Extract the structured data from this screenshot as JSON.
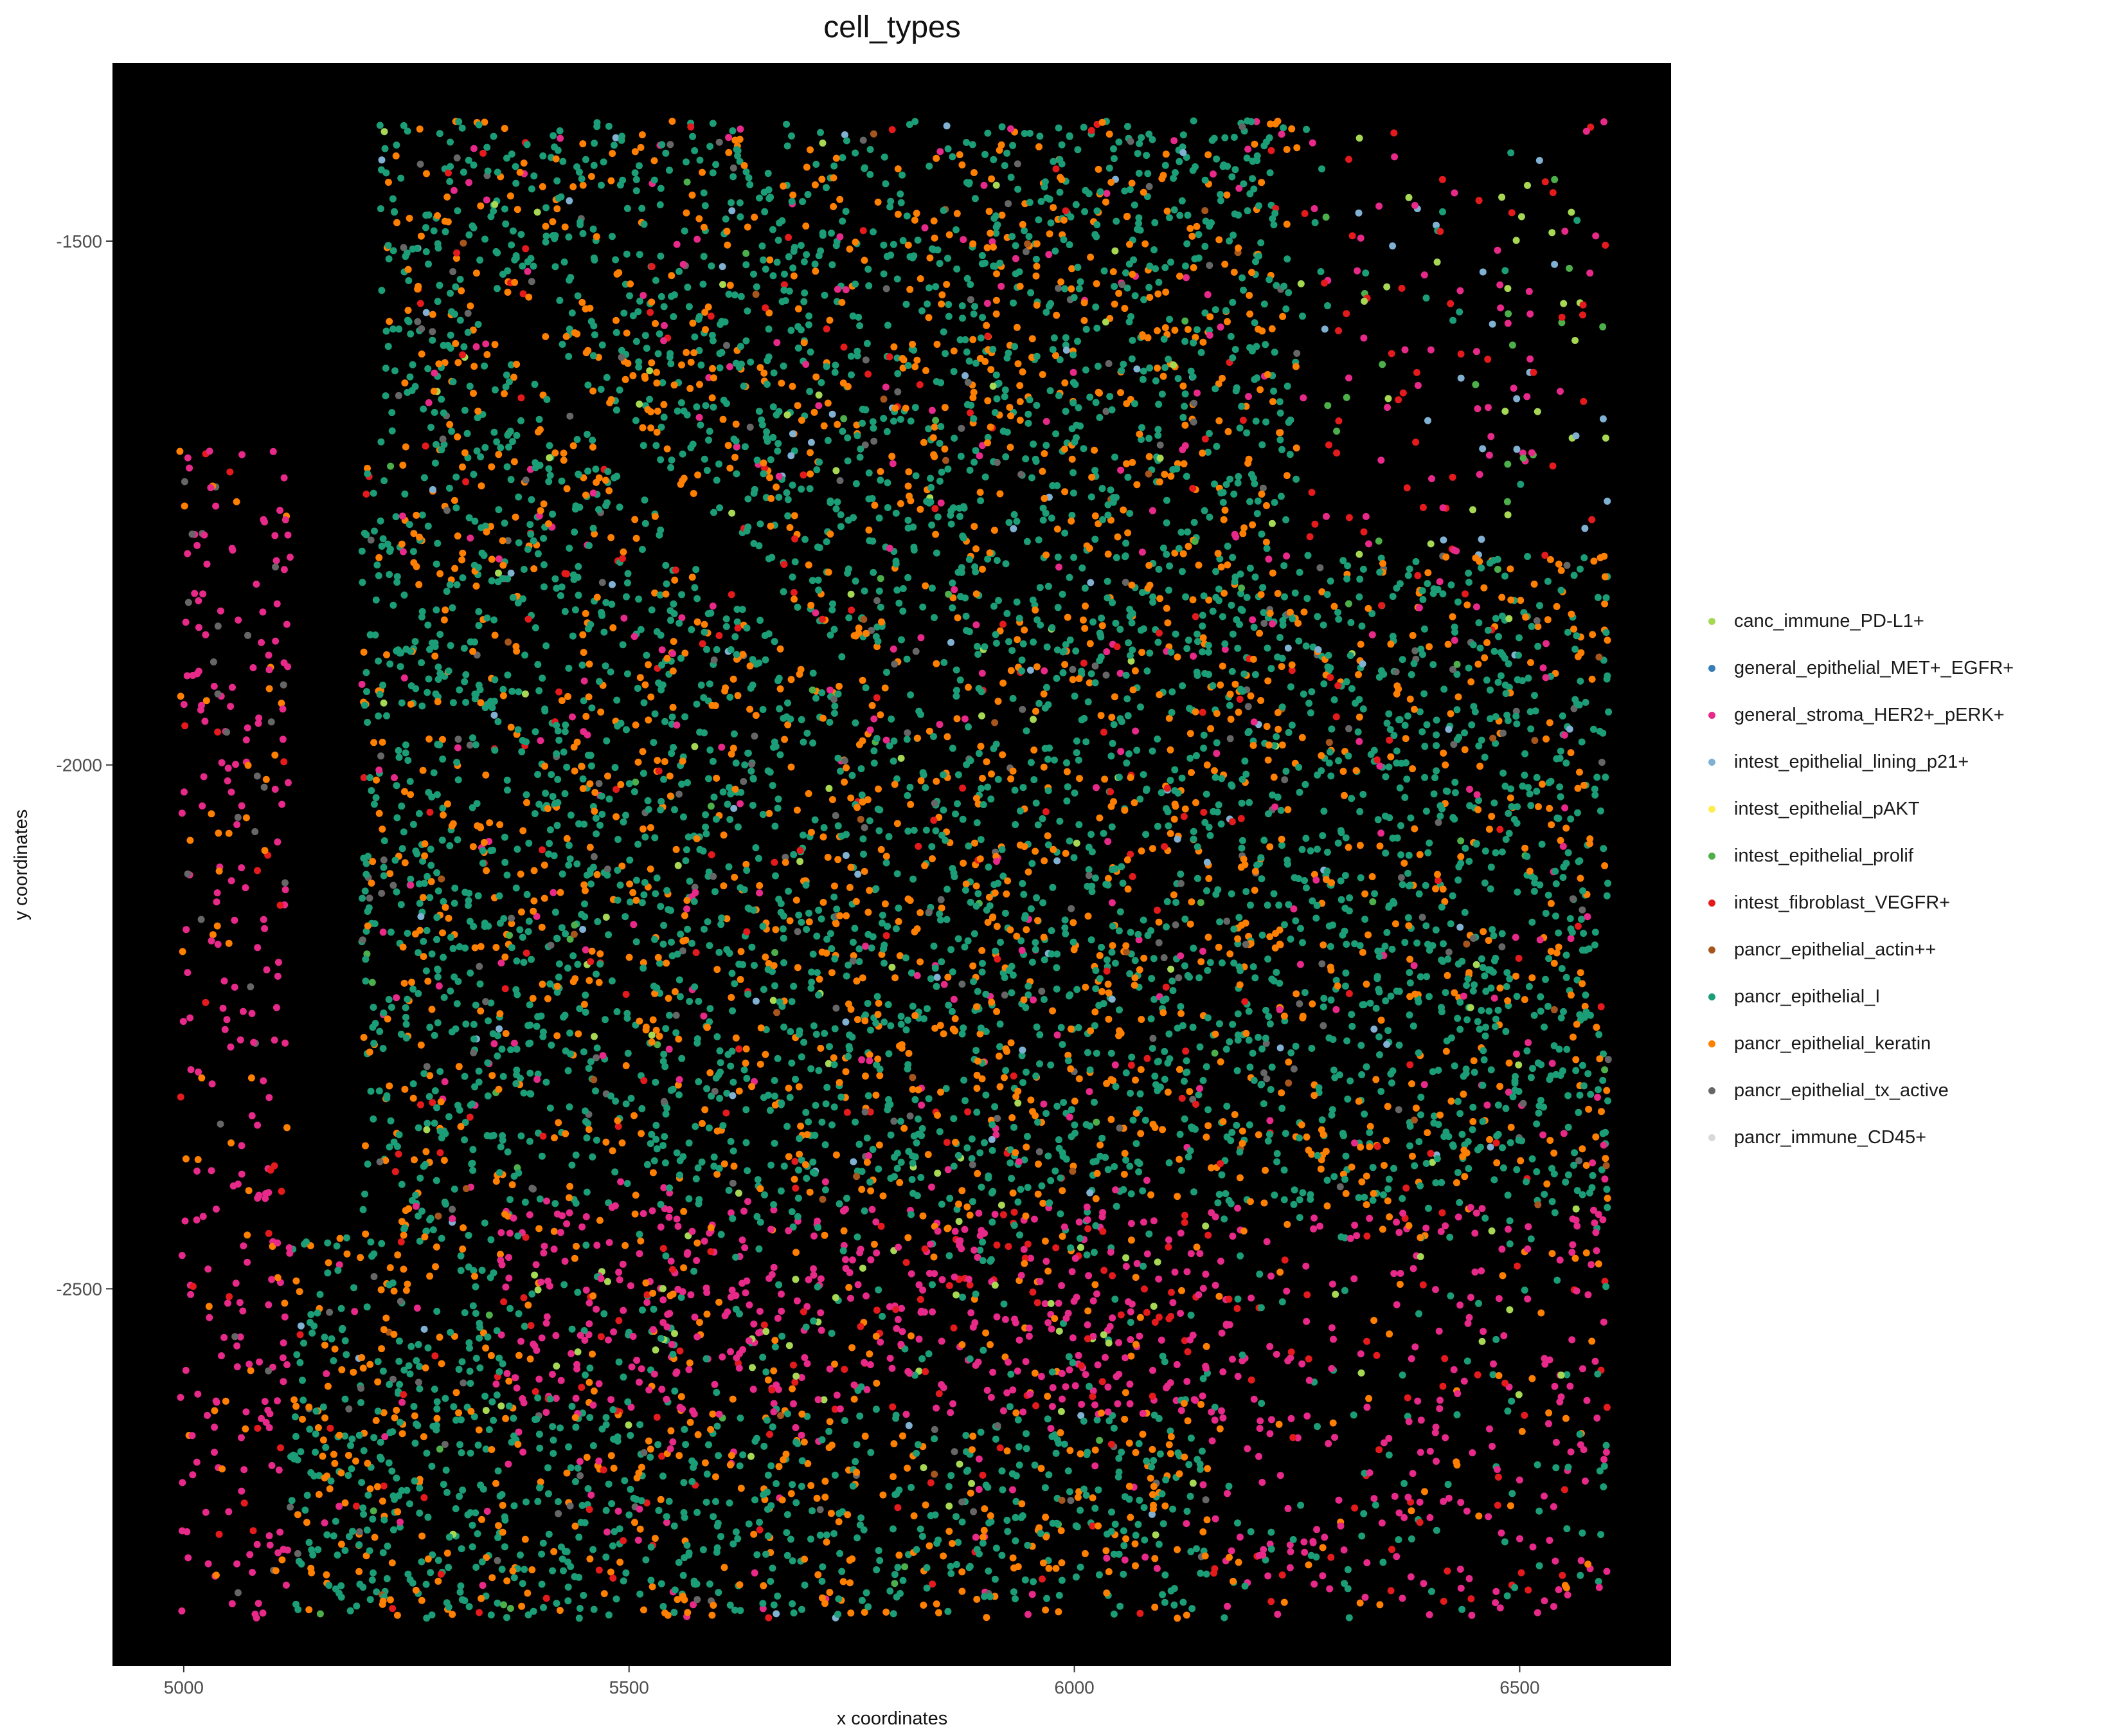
{
  "chart_data": {
    "type": "scatter",
    "title": "cell_types",
    "xlabel": "x coordinates",
    "ylabel": "y coordinates",
    "xlim": [
      4920,
      6670
    ],
    "ylim": [
      -2860,
      -1330
    ],
    "x_ticks": [
      5000,
      5500,
      6000,
      6500
    ],
    "y_ticks": [
      -1500,
      -2000,
      -2500
    ],
    "x_tick_labels": [
      "5000",
      "5500",
      "6000",
      "6500"
    ],
    "y_tick_labels": [
      "-1500",
      "-2000",
      "-2500"
    ],
    "background": "#000000",
    "grid": false,
    "legend_position": "right",
    "categories": [
      {
        "name": "canc_immune_PD-L1+",
        "color": "#A6D854"
      },
      {
        "name": "general_epithelial_MET+_EGFR+",
        "color": "#377EB8"
      },
      {
        "name": "general_stroma_HER2+_pERK+",
        "color": "#E7298A"
      },
      {
        "name": "intest_epithelial_lining_p21+",
        "color": "#80B1D3"
      },
      {
        "name": "intest_epithelial_pAKT",
        "color": "#FFED4F"
      },
      {
        "name": "intest_epithelial_prolif",
        "color": "#4DAF4A"
      },
      {
        "name": "intest_fibroblast_VEGFR+",
        "color": "#E41A1C"
      },
      {
        "name": "pancr_epithelial_actin++",
        "color": "#A6561D"
      },
      {
        "name": "pancr_epithelial_I",
        "color": "#1B9E77"
      },
      {
        "name": "pancr_epithelial_keratin",
        "color": "#FF7F00"
      },
      {
        "name": "pancr_epithelial_tx_active",
        "color": "#666666"
      },
      {
        "name": "pancr_immune_CD45+",
        "color": "#D9D9D9"
      }
    ],
    "x_extent": [
      4995,
      6600
    ],
    "y_extent": [
      -2815,
      -1385
    ],
    "regions_description": "dense tissue with green pancr_epithelial_I and orange keratin cells, pink stroma in lower and left-edge bands, red fibroblasts and blue lining cells at upper right"
  }
}
